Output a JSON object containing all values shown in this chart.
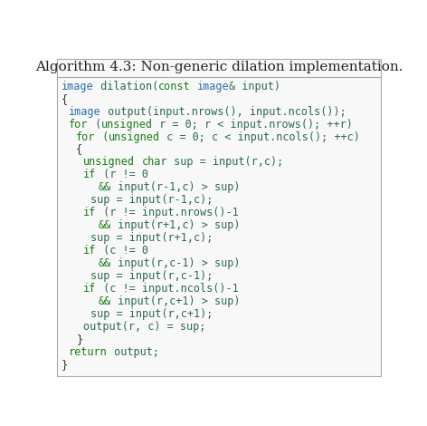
{
  "title": "Algorithm 4.3: Non-generic dilation implementation.",
  "title_fontsize": 11,
  "title_font": "serif",
  "bg_color": "#ffffff",
  "box_bg": "#f8f8f8",
  "border_color": "#aaaaaa",
  "code_font_size": 8.5,
  "keyword_color": "#1a7a1a",
  "type_color": "#2b6cb0",
  "default_color": "#2d6a4f",
  "brace_color": "#333333",
  "lines": [
    {
      "tokens": [
        {
          "text": "image",
          "color": "#2b6cb0"
        },
        {
          "text": " dilation(",
          "color": "#2d6a4f"
        },
        {
          "text": "const",
          "color": "#1a7a1a"
        },
        {
          "text": " ",
          "color": "#2d6a4f"
        },
        {
          "text": "image",
          "color": "#2b6cb0"
        },
        {
          "text": "& input)",
          "color": "#2d6a4f"
        }
      ],
      "indent": 0
    },
    {
      "tokens": [
        {
          "text": "{",
          "color": "#333333"
        }
      ],
      "indent": 0
    },
    {
      "tokens": [
        {
          "text": "image",
          "color": "#2b6cb0"
        },
        {
          "text": " output(input.nrows(), input.ncols());",
          "color": "#2d6a4f"
        }
      ],
      "indent": 1
    },
    {
      "tokens": [
        {
          "text": "for",
          "color": "#1a7a1a"
        },
        {
          "text": " (",
          "color": "#2d6a4f"
        },
        {
          "text": "unsigned",
          "color": "#1a7a1a"
        },
        {
          "text": " r = 0; r < input.nrows(); ++r)",
          "color": "#2d6a4f"
        }
      ],
      "indent": 1
    },
    {
      "tokens": [
        {
          "text": "for",
          "color": "#1a7a1a"
        },
        {
          "text": " (",
          "color": "#2d6a4f"
        },
        {
          "text": "unsigned",
          "color": "#1a7a1a"
        },
        {
          "text": " c = 0; c < input.ncols(); ++c)",
          "color": "#2d6a4f"
        }
      ],
      "indent": 2
    },
    {
      "tokens": [
        {
          "text": "{",
          "color": "#333333"
        }
      ],
      "indent": 2
    },
    {
      "tokens": [
        {
          "text": "unsigned",
          "color": "#1a7a1a"
        },
        {
          "text": " ",
          "color": "#2d6a4f"
        },
        {
          "text": "char",
          "color": "#1a7a1a"
        },
        {
          "text": " sup = input(r,c);",
          "color": "#2d6a4f"
        }
      ],
      "indent": 3
    },
    {
      "tokens": [
        {
          "text": "if",
          "color": "#1a7a1a"
        },
        {
          "text": " (r != 0",
          "color": "#2d6a4f"
        }
      ],
      "indent": 3
    },
    {
      "tokens": [
        {
          "text": "&&",
          "color": "#1a7a1a"
        },
        {
          "text": " input(r-1,c) > sup)",
          "color": "#2d6a4f"
        }
      ],
      "indent": 5
    },
    {
      "tokens": [
        {
          "text": "sup = input(r-1,c);",
          "color": "#2d6a4f"
        }
      ],
      "indent": 4
    },
    {
      "tokens": [
        {
          "text": "if",
          "color": "#1a7a1a"
        },
        {
          "text": " (r != input.nrows()-1",
          "color": "#2d6a4f"
        }
      ],
      "indent": 3
    },
    {
      "tokens": [
        {
          "text": "&&",
          "color": "#1a7a1a"
        },
        {
          "text": " input(r+1,c) > sup)",
          "color": "#2d6a4f"
        }
      ],
      "indent": 5
    },
    {
      "tokens": [
        {
          "text": "sup = input(r+1,c);",
          "color": "#2d6a4f"
        }
      ],
      "indent": 4
    },
    {
      "tokens": [
        {
          "text": "if",
          "color": "#1a7a1a"
        },
        {
          "text": " (c != 0",
          "color": "#2d6a4f"
        }
      ],
      "indent": 3
    },
    {
      "tokens": [
        {
          "text": "&&",
          "color": "#1a7a1a"
        },
        {
          "text": " input(r,c-1) > sup)",
          "color": "#2d6a4f"
        }
      ],
      "indent": 5
    },
    {
      "tokens": [
        {
          "text": "sup = input(r,c-1);",
          "color": "#2d6a4f"
        }
      ],
      "indent": 4
    },
    {
      "tokens": [
        {
          "text": "if",
          "color": "#1a7a1a"
        },
        {
          "text": " (c != input.ncols()-1",
          "color": "#2d6a4f"
        }
      ],
      "indent": 3
    },
    {
      "tokens": [
        {
          "text": "&&",
          "color": "#1a7a1a"
        },
        {
          "text": " input(r,c+1) > sup)",
          "color": "#2d6a4f"
        }
      ],
      "indent": 5
    },
    {
      "tokens": [
        {
          "text": "sup = input(r,c+1);",
          "color": "#2d6a4f"
        }
      ],
      "indent": 4
    },
    {
      "tokens": [
        {
          "text": "output(r, c) = sup;",
          "color": "#2d6a4f"
        }
      ],
      "indent": 3
    },
    {
      "tokens": [
        {
          "text": "}",
          "color": "#333333"
        }
      ],
      "indent": 2
    },
    {
      "tokens": [
        {
          "text": "return",
          "color": "#1a7a1a"
        },
        {
          "text": " output;",
          "color": "#2d6a4f"
        }
      ],
      "indent": 1
    },
    {
      "tokens": [
        {
          "text": "}",
          "color": "#333333"
        }
      ],
      "indent": 0
    }
  ]
}
